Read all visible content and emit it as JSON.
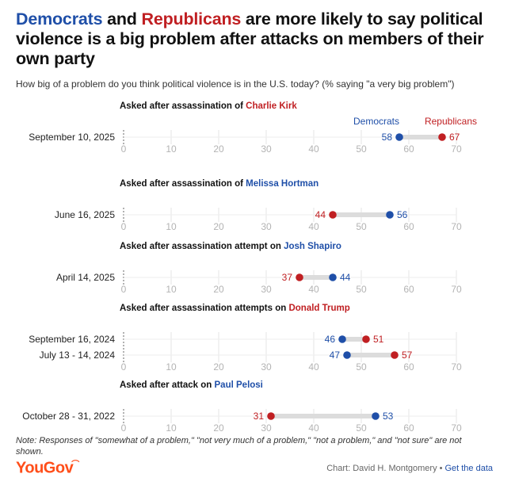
{
  "title": {
    "dem_word": "Democrats",
    "and_word": " and ",
    "rep_word": "Republicans",
    "rest": " are more likely to say political violence is a big problem after attacks on members of their own party"
  },
  "subtitle": "How big of a problem do you think political violence is in the U.S. today? (% saying \"a very big problem\")",
  "chart_data": {
    "type": "dumbbell",
    "xlim": [
      0,
      70
    ],
    "ticks": [
      0,
      10,
      20,
      30,
      40,
      50,
      60,
      70
    ],
    "colors": {
      "democrats": "#1f4fa8",
      "republicans": "#c01f22",
      "connector": "#dcdcdc",
      "grid": "#e6e6e6"
    },
    "legend": {
      "democrats": "Democrats",
      "republicans": "Republicans"
    },
    "groups": [
      {
        "label_prefix": "Asked after assassination of ",
        "name": "Charlie Kirk",
        "party": "republicans",
        "rows": [
          {
            "date": "September 10, 2025",
            "democrats": 58,
            "republicans": 67
          }
        ]
      },
      {
        "label_prefix": "Asked after assassination of ",
        "name": "Melissa Hortman",
        "party": "democrats",
        "rows": [
          {
            "date": "June 16, 2025",
            "democrats": 56,
            "republicans": 44
          }
        ]
      },
      {
        "label_prefix": "Asked after assassination attempt on ",
        "name": "Josh Shapiro",
        "party": "democrats",
        "rows": [
          {
            "date": "April 14, 2025",
            "democrats": 44,
            "republicans": 37
          }
        ]
      },
      {
        "label_prefix": "Asked after assassination attempts on ",
        "name": "Donald Trump",
        "party": "republicans",
        "rows": [
          {
            "date": "September 16, 2024",
            "democrats": 46,
            "republicans": 51
          },
          {
            "date": "July 13 - 14, 2024",
            "democrats": 47,
            "republicans": 57
          }
        ]
      },
      {
        "label_prefix": "Asked after attack on ",
        "name": "Paul Pelosi",
        "party": "democrats",
        "rows": [
          {
            "date": "October 28 - 31, 2022",
            "democrats": 53,
            "republicans": 31
          }
        ]
      }
    ]
  },
  "note": "Note: Responses of \"somewhat of a problem,\" \"not very much of a problem,\" \"not a problem,\" and \"not sure\" are not shown.",
  "footer": {
    "logo": "YouGov",
    "credit": "Chart: David H. Montgomery",
    "separator": "•",
    "link": "Get the data"
  }
}
